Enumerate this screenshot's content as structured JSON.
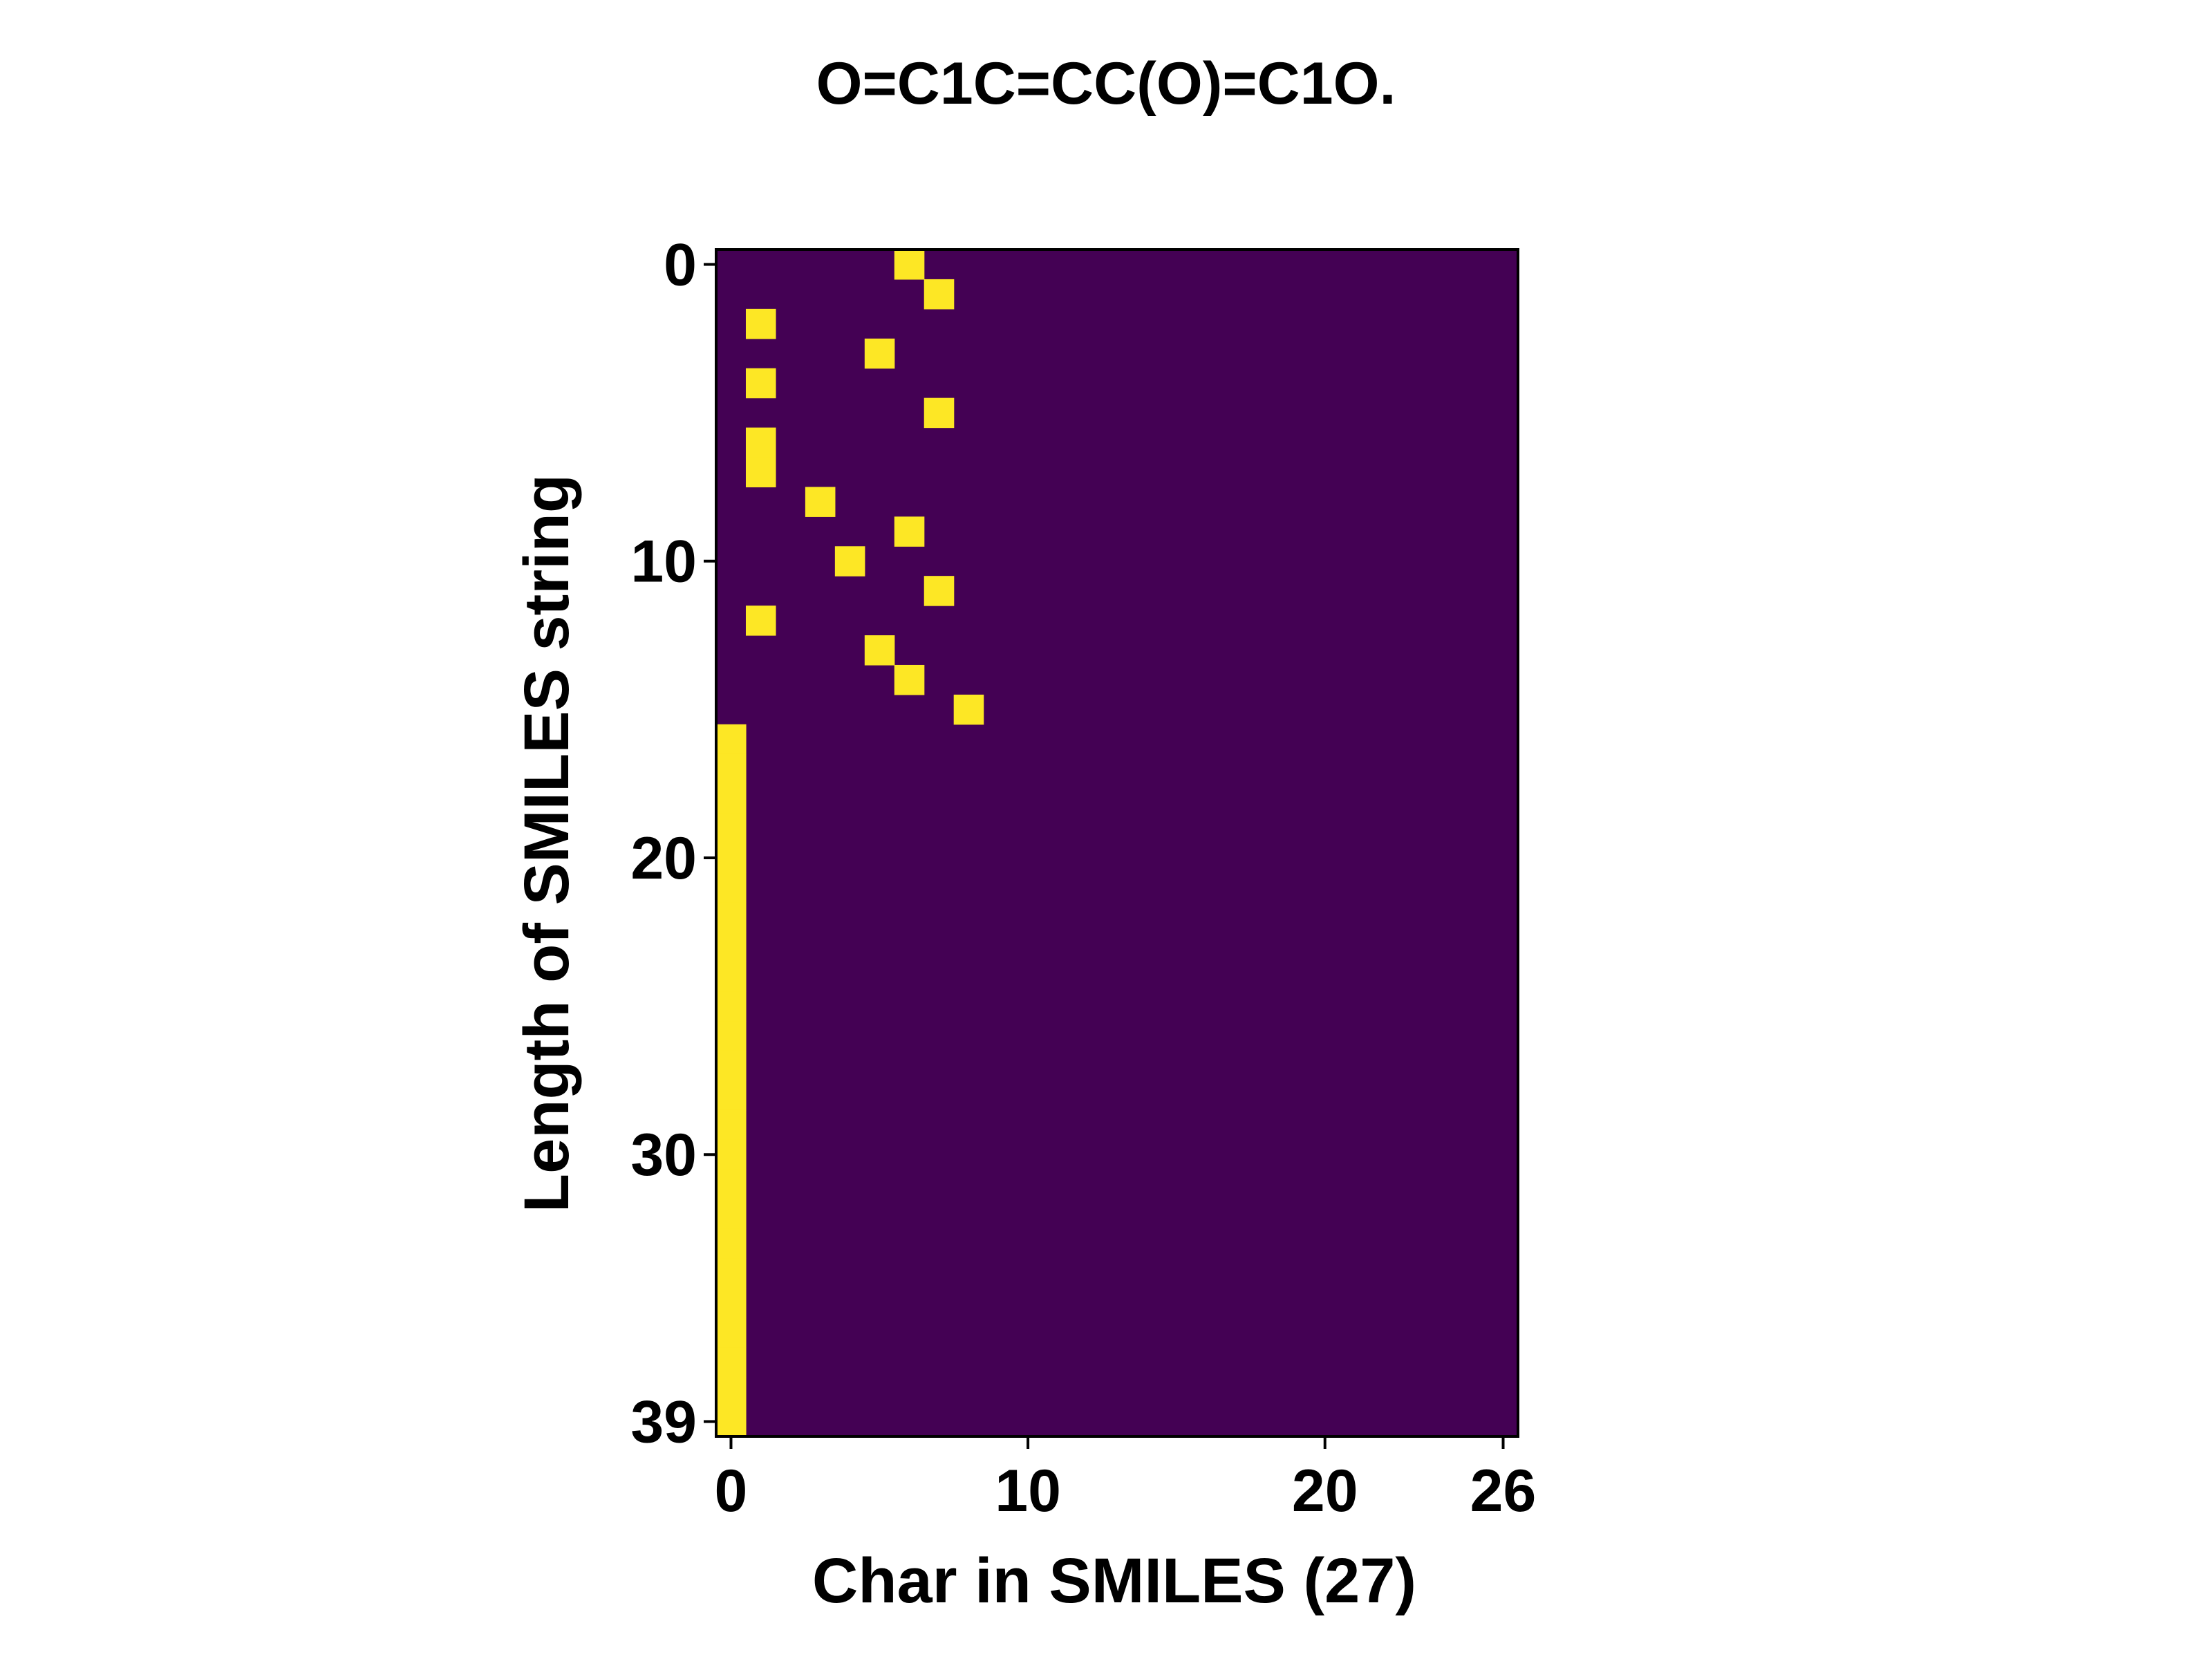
{
  "chart_data": {
    "type": "heatmap",
    "title": "O=C1C=CC(O)=C1O.",
    "xlabel": "Char in SMILES (27)",
    "ylabel": "Length of SMILES string",
    "n_cols": 27,
    "n_rows": 40,
    "xticks": [
      0,
      10,
      20,
      26
    ],
    "yticks": [
      0,
      10,
      20,
      30,
      39
    ],
    "colormap": "viridis",
    "value_range": [
      0,
      1
    ],
    "colors": {
      "background": "#440154",
      "active": "#fde725",
      "frame": "#000000"
    },
    "active_cells": [
      {
        "row": 0,
        "col": 6
      },
      {
        "row": 1,
        "col": 7
      },
      {
        "row": 2,
        "col": 1
      },
      {
        "row": 3,
        "col": 5
      },
      {
        "row": 4,
        "col": 1
      },
      {
        "row": 5,
        "col": 7
      },
      {
        "row": 6,
        "col": 1
      },
      {
        "row": 7,
        "col": 1
      },
      {
        "row": 8,
        "col": 3
      },
      {
        "row": 9,
        "col": 6
      },
      {
        "row": 10,
        "col": 4
      },
      {
        "row": 11,
        "col": 7
      },
      {
        "row": 12,
        "col": 1
      },
      {
        "row": 13,
        "col": 5
      },
      {
        "row": 14,
        "col": 6
      },
      {
        "row": 15,
        "col": 8
      },
      {
        "row": 16,
        "col": 0
      },
      {
        "row": 17,
        "col": 0
      },
      {
        "row": 18,
        "col": 0
      },
      {
        "row": 19,
        "col": 0
      },
      {
        "row": 20,
        "col": 0
      },
      {
        "row": 21,
        "col": 0
      },
      {
        "row": 22,
        "col": 0
      },
      {
        "row": 23,
        "col": 0
      },
      {
        "row": 24,
        "col": 0
      },
      {
        "row": 25,
        "col": 0
      },
      {
        "row": 26,
        "col": 0
      },
      {
        "row": 27,
        "col": 0
      },
      {
        "row": 28,
        "col": 0
      },
      {
        "row": 29,
        "col": 0
      },
      {
        "row": 30,
        "col": 0
      },
      {
        "row": 31,
        "col": 0
      },
      {
        "row": 32,
        "col": 0
      },
      {
        "row": 33,
        "col": 0
      },
      {
        "row": 34,
        "col": 0
      },
      {
        "row": 35,
        "col": 0
      },
      {
        "row": 36,
        "col": 0
      },
      {
        "row": 37,
        "col": 0
      },
      {
        "row": 38,
        "col": 0
      },
      {
        "row": 39,
        "col": 0
      }
    ]
  }
}
